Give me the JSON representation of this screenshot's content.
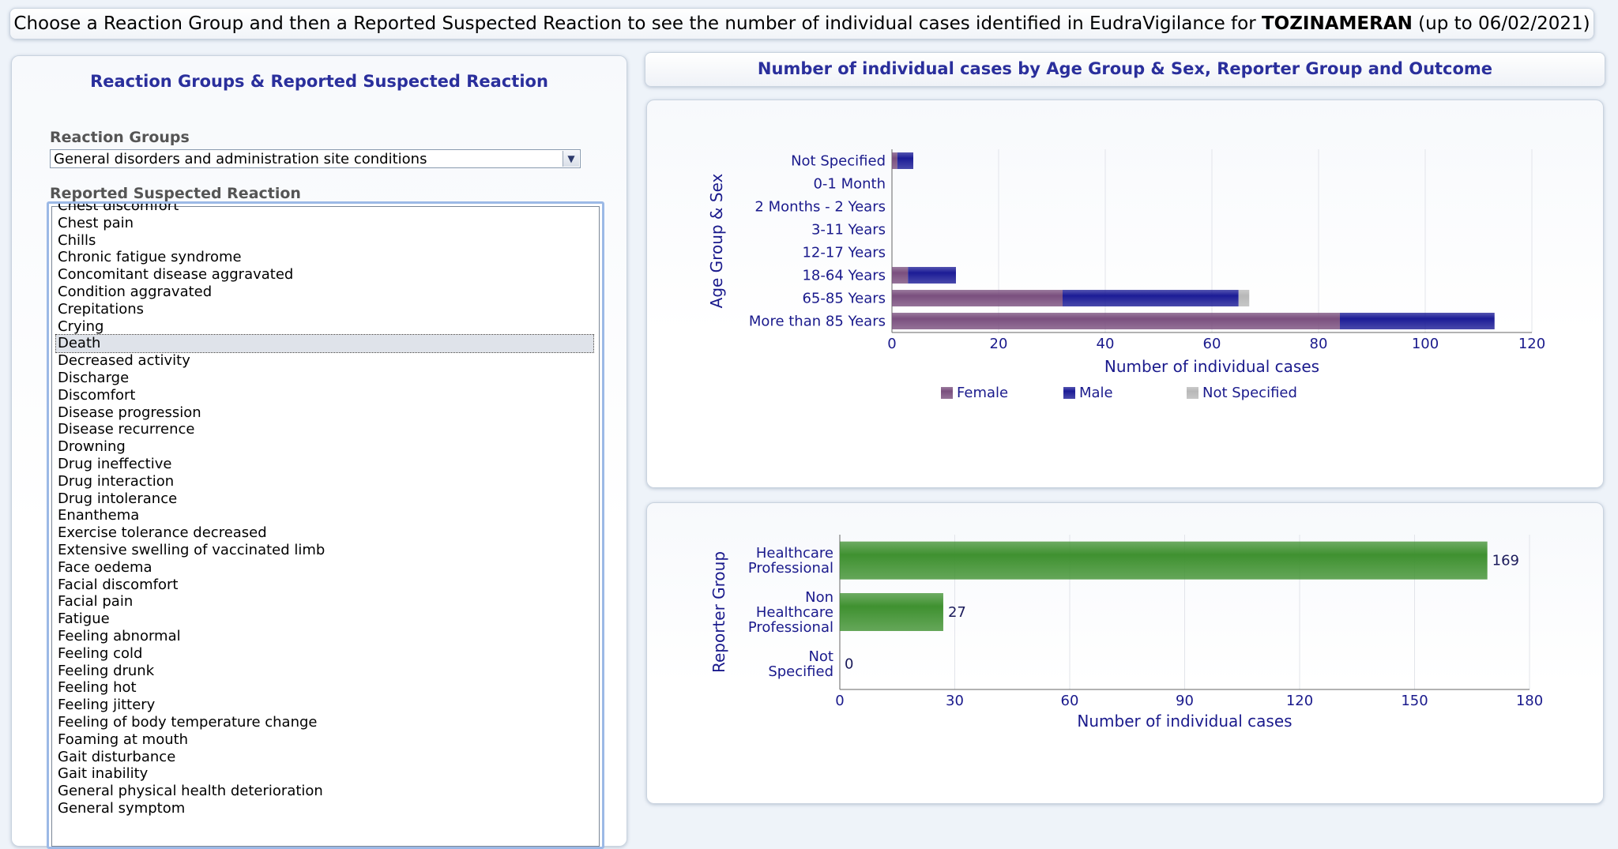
{
  "header": {
    "text_before": "Choose a Reaction Group and then a Reported Suspected Reaction to see the number of individual cases identified in EudraVigilance for ",
    "product": "TOZINAMERAN",
    "text_after": " (up to 06/02/2021)"
  },
  "left_panel": {
    "title": "Reaction Groups & Reported Suspected Reaction",
    "groups_label": "Reaction Groups",
    "selected_group": "General disorders and administration site conditions",
    "reactions_label": "Reported Suspected Reaction",
    "selected_reaction": "Death",
    "reactions": [
      "Chest discomfort",
      "Chest pain",
      "Chills",
      "Chronic fatigue syndrome",
      "Concomitant disease aggravated",
      "Condition aggravated",
      "Crepitations",
      "Crying",
      "Death",
      "Decreased activity",
      "Discharge",
      "Discomfort",
      "Disease progression",
      "Disease recurrence",
      "Drowning",
      "Drug ineffective",
      "Drug interaction",
      "Drug intolerance",
      "Enanthema",
      "Exercise tolerance decreased",
      "Extensive swelling of vaccinated limb",
      "Face oedema",
      "Facial discomfort",
      "Facial pain",
      "Fatigue",
      "Feeling abnormal",
      "Feeling cold",
      "Feeling drunk",
      "Feeling hot",
      "Feeling jittery",
      "Feeling of body temperature change",
      "Foaming at mouth",
      "Gait disturbance",
      "Gait inability",
      "General physical health deterioration",
      "General symptom"
    ]
  },
  "right_panel": {
    "title": "Number of individual cases by Age Group & Sex, Reporter Group and Outcome"
  },
  "colors": {
    "female": "#7a4f7e",
    "male": "#1c1c96",
    "not_specified": "#b8b8b8",
    "reporter_bar": "#3f9130",
    "axis_text": "#1a1a8c"
  },
  "chart_data": [
    {
      "type": "bar",
      "orientation": "horizontal",
      "stacked": true,
      "categories": [
        "Not Specified",
        "0-1 Month",
        "2 Months - 2 Years",
        "3-11 Years",
        "12-17 Years",
        "18-64 Years",
        "65-85 Years",
        "More than 85 Years"
      ],
      "series": [
        {
          "name": "Female",
          "values": [
            1,
            0,
            0,
            0,
            0,
            3,
            32,
            84
          ]
        },
        {
          "name": "Male",
          "values": [
            3,
            0,
            0,
            0,
            0,
            9,
            33,
            29
          ]
        },
        {
          "name": "Not Specified",
          "values": [
            0,
            0,
            0,
            0,
            0,
            0,
            2,
            0
          ]
        }
      ],
      "xlabel": "Number of individual cases",
      "ylabel": "Age Group & Sex",
      "xlim": [
        0,
        120
      ],
      "xticks": [
        "0",
        "20",
        "40",
        "60",
        "80",
        "100",
        "120"
      ],
      "grid": true,
      "legend": "bottom"
    },
    {
      "type": "bar",
      "orientation": "horizontal",
      "categories": [
        "Healthcare Professional",
        "Non Healthcare Professional",
        "Not Specified"
      ],
      "values": [
        169,
        27,
        0
      ],
      "data_labels": [
        "169",
        "27",
        "0"
      ],
      "xlabel": "Number of individual cases",
      "ylabel": "Reporter Group",
      "xlim": [
        0,
        180
      ],
      "xticks": [
        "0",
        "30",
        "60",
        "90",
        "120",
        "150",
        "180"
      ],
      "grid": true
    }
  ]
}
